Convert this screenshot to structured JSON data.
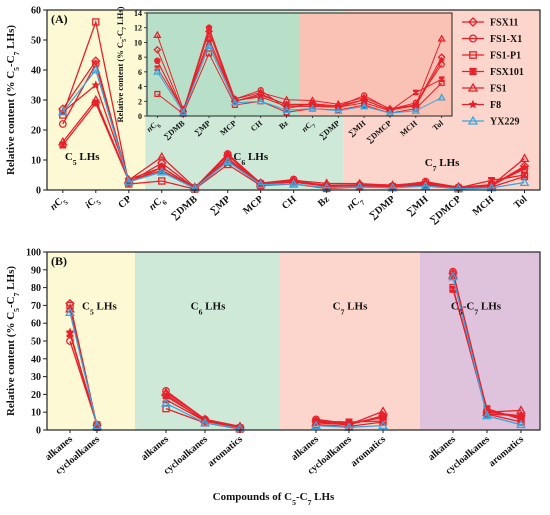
{
  "chart_data": [
    {
      "type": "line",
      "panel_label": "(A)",
      "ylabel": "Relative content (% C5-C7 LHs)",
      "ylim": [
        0,
        60
      ],
      "yticks": [
        0,
        10,
        20,
        30,
        40,
        50,
        60
      ],
      "categories": [
        "nC5",
        "iC5",
        "CP",
        "nC6",
        "∑DMB",
        "∑MP",
        "MCP",
        "CH",
        "Bz",
        "nC7",
        "∑DMP",
        "∑MH",
        "∑DMCP",
        "MCH",
        "Tol"
      ],
      "category_labels": [
        {
          "main": "n",
          "base": "C",
          "sub": "5"
        },
        {
          "main": "i",
          "base": "C",
          "sub": "5"
        },
        {
          "main": "",
          "base": "CP",
          "sub": ""
        },
        {
          "main": "n",
          "base": "C",
          "sub": "6"
        },
        {
          "main": "",
          "base": "∑DMB",
          "sub": ""
        },
        {
          "main": "",
          "base": "∑MP",
          "sub": ""
        },
        {
          "main": "",
          "base": "MCP",
          "sub": ""
        },
        {
          "main": "",
          "base": "CH",
          "sub": ""
        },
        {
          "main": "",
          "base": "Bz",
          "sub": ""
        },
        {
          "main": "n",
          "base": "C",
          "sub": "7"
        },
        {
          "main": "",
          "base": "∑DMP",
          "sub": ""
        },
        {
          "main": "",
          "base": "∑MH",
          "sub": ""
        },
        {
          "main": "",
          "base": "∑DMCP",
          "sub": ""
        },
        {
          "main": "",
          "base": "MCH",
          "sub": ""
        },
        {
          "main": "",
          "base": "Tol",
          "sub": ""
        }
      ],
      "regions": [
        {
          "label": "C5 LHs",
          "from": 0,
          "to": 2,
          "color": "#fdf9d4"
        },
        {
          "label": "C6 LHs",
          "from": 2,
          "to": 8,
          "color": "#cfe9d9"
        },
        {
          "label": "C7 LHs",
          "from": 8,
          "to": 14,
          "color": "#fcd6cc"
        }
      ],
      "series": [
        {
          "name": "FSX11",
          "marker": "diamond",
          "color": "#e8202a",
          "values": [
            27,
            43,
            2.5,
            9,
            0.6,
            11.5,
            2,
            3,
            1.5,
            1.5,
            1.2,
            2.2,
            0.8,
            1.5,
            8
          ]
        },
        {
          "name": "FS1-X1",
          "marker": "circle",
          "color": "#e8202a",
          "values": [
            22,
            42,
            2.5,
            7.5,
            0.6,
            12,
            2.3,
            3.5,
            1,
            1.7,
            1.3,
            2.8,
            0.9,
            1.8,
            7
          ]
        },
        {
          "name": "FS1-P1",
          "marker": "square",
          "color": "#e8202a",
          "values": [
            25,
            56,
            2,
            3,
            0.3,
            8.5,
            1.5,
            2,
            0.5,
            1,
            0.8,
            1.5,
            0.4,
            1,
            4.5
          ]
        },
        {
          "name": "FSX101",
          "marker": "hourglass",
          "color": "#e8202a",
          "values": [
            15,
            29,
            3,
            6.5,
            0.8,
            10,
            2.1,
            2.6,
            1.3,
            1.3,
            1.2,
            1.8,
            0.7,
            3.2,
            5
          ]
        },
        {
          "name": "FS1",
          "marker": "triangle",
          "color": "#e8202a",
          "values": [
            16,
            30,
            3.3,
            11,
            0.9,
            10.5,
            2.3,
            3.2,
            2.2,
            2.1,
            1.6,
            2.5,
            1,
            1.5,
            10.5
          ]
        },
        {
          "name": "F8",
          "marker": "star",
          "color": "#e8202a",
          "values": [
            26,
            35,
            3.5,
            7.5,
            0.7,
            12,
            2,
            2.8,
            1.6,
            1.6,
            1.4,
            2.2,
            0.8,
            1.4,
            7.5
          ]
        },
        {
          "name": "YX229",
          "marker": "triangle-open",
          "color": "#3aa7dc",
          "values": [
            26,
            40,
            2.7,
            6,
            0.5,
            9.5,
            1.8,
            2,
            0.8,
            1,
            0.7,
            1.3,
            0.4,
            0.7,
            2.5
          ]
        }
      ],
      "region_texts": [
        {
          "base": "C",
          "sub": "5",
          "rest": " LHs"
        },
        {
          "base": "C",
          "sub": "6",
          "rest": " LHs"
        },
        {
          "base": "C",
          "sub": "7",
          "rest": " LHs"
        }
      ],
      "inset": {
        "ylabel": "Relative content (% C5-C7 LHs)",
        "ylim": [
          0,
          14
        ],
        "yticks": [
          0,
          2,
          4,
          6,
          8,
          10,
          12,
          14
        ],
        "categories": [
          "nC6",
          "∑DMB",
          "∑MP",
          "MCP",
          "CH",
          "Bz",
          "nC7",
          "∑DMP",
          "∑MH",
          "∑DMCP",
          "MCH",
          "Tol"
        ],
        "regions": [
          {
            "from": 0,
            "to": 5,
            "color": "#b8e0c8"
          },
          {
            "from": 5,
            "to": 11,
            "color": "#f9c2b4"
          }
        ],
        "series_ref": "uses series values from index 3 to 14"
      }
    },
    {
      "type": "line",
      "panel_label": "(B)",
      "xlabel": "Compounds of C5-C7 LHs",
      "ylabel": "Relative content (% C5-C7 LHs)",
      "ylim": [
        0,
        100
      ],
      "yticks": [
        0,
        10,
        20,
        30,
        40,
        50,
        60,
        70,
        80,
        90,
        100
      ],
      "groups": [
        {
          "label": "C5 LHs",
          "label_parts": {
            "base": "C",
            "sub": "5",
            "rest": " LHs"
          },
          "color": "#fdf9d4",
          "categories": [
            "alkanes",
            "cycloalkanes"
          ],
          "series": [
            {
              "name": "FSX11",
              "values": [
                71,
                2.5
              ]
            },
            {
              "name": "FS1-X1",
              "values": [
                50,
                3
              ]
            },
            {
              "name": "FS1-P1",
              "values": [
                70,
                1.5
              ]
            },
            {
              "name": "FSX101",
              "values": [
                54,
                3
              ]
            },
            {
              "name": "FS1",
              "values": [
                68,
                2
              ]
            },
            {
              "name": "F8",
              "values": [
                55,
                3
              ]
            },
            {
              "name": "YX229",
              "values": [
                66,
                2.5
              ]
            }
          ]
        },
        {
          "label": "C6 LHs",
          "label_parts": {
            "base": "C",
            "sub": "6",
            "rest": " LHs"
          },
          "color": "#cfe9d9",
          "categories": [
            "alkanes",
            "cycloalkanes",
            "aromatics"
          ],
          "series": [
            {
              "name": "FSX11",
              "values": [
                20,
                5,
                1.5
              ]
            },
            {
              "name": "FS1-X1",
              "values": [
                22,
                6,
                1
              ]
            },
            {
              "name": "FS1-P1",
              "values": [
                12,
                4,
                0.5
              ]
            },
            {
              "name": "FSX101",
              "values": [
                17,
                5,
                1.3
              ]
            },
            {
              "name": "FS1",
              "values": [
                21,
                6,
                2
              ]
            },
            {
              "name": "F8",
              "values": [
                19,
                5.5,
                1.6
              ]
            },
            {
              "name": "YX229",
              "values": [
                15,
                4,
                0.8
              ]
            }
          ]
        },
        {
          "label": "C7 LHs",
          "label_parts": {
            "base": "C",
            "sub": "7",
            "rest": " LHs"
          },
          "color": "#fcd6cc",
          "categories": [
            "alkanes",
            "cycloalkanes",
            "aromatics"
          ],
          "series": [
            {
              "name": "FSX11",
              "values": [
                5,
                3,
                8
              ]
            },
            {
              "name": "FS1-X1",
              "values": [
                6,
                3.5,
                7
              ]
            },
            {
              "name": "FS1-P1",
              "values": [
                3,
                2,
                4.5
              ]
            },
            {
              "name": "FSX101",
              "values": [
                5,
                4.5,
                5
              ]
            },
            {
              "name": "FS1",
              "values": [
                4,
                3,
                10.5
              ]
            },
            {
              "name": "F8",
              "values": [
                4.5,
                3.2,
                7.5
              ]
            },
            {
              "name": "YX229",
              "values": [
                2.5,
                1.5,
                2.5
              ]
            }
          ]
        },
        {
          "label": "C5-C7 LHs",
          "label_parts": {
            "base": "C",
            "sub": "5",
            "rest": "-C",
            "sub2": "7",
            "rest2": " LHs"
          },
          "color": "#dfc3dd",
          "categories": [
            "alkanes",
            "cycloalkanes",
            "aromatics"
          ],
          "series": [
            {
              "name": "FSX11",
              "values": [
                88,
                10,
                8
              ]
            },
            {
              "name": "FS1-X1",
              "values": [
                89,
                11,
                7
              ]
            },
            {
              "name": "FS1-P1",
              "values": [
                80,
                9,
                4.5
              ]
            },
            {
              "name": "FSX101",
              "values": [
                79,
                12,
                6
              ]
            },
            {
              "name": "FS1",
              "values": [
                87,
                10,
                11
              ]
            },
            {
              "name": "F8",
              "values": [
                86,
                9,
                8
              ]
            },
            {
              "name": "YX229",
              "values": [
                86,
                8,
                3
              ]
            }
          ]
        }
      ]
    }
  ],
  "legend": {
    "placement": "top-right",
    "items": [
      {
        "name": "FSX11",
        "marker": "diamond",
        "color": "#e8202a"
      },
      {
        "name": "FS1-X1",
        "marker": "circle",
        "color": "#e8202a"
      },
      {
        "name": "FS1-P1",
        "marker": "square",
        "color": "#e8202a"
      },
      {
        "name": "FSX101",
        "marker": "hourglass",
        "color": "#e8202a"
      },
      {
        "name": "FS1",
        "marker": "triangle",
        "color": "#e8202a"
      },
      {
        "name": "F8",
        "marker": "star",
        "color": "#e8202a"
      },
      {
        "name": "YX229",
        "marker": "triangle-open",
        "color": "#3aa7dc"
      }
    ]
  }
}
